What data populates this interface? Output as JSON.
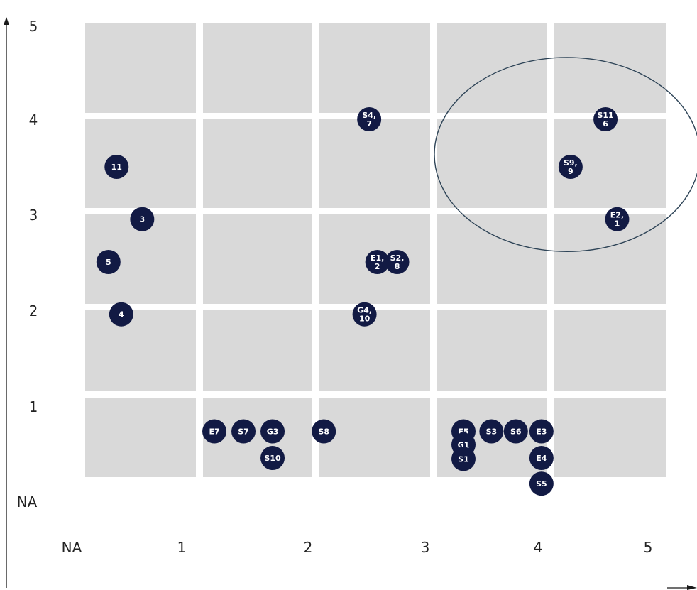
{
  "colors": {
    "cell_fill": "#d9d9d9",
    "point_fill": "#121a44",
    "point_text": "#ffffff",
    "ellipse_stroke": "#2e4457",
    "axis": "#1a1a1a",
    "tick_text": "#222222"
  },
  "chart_data": {
    "type": "scatter",
    "title": "",
    "xlabel": "",
    "ylabel": "",
    "x_ticks": [
      "NA",
      "1",
      "2",
      "3",
      "4",
      "5"
    ],
    "y_ticks": [
      "NA",
      "1",
      "2",
      "3",
      "4",
      "5"
    ],
    "xlim": [
      0,
      5
    ],
    "ylim": [
      0,
      5
    ],
    "grid": "5x5 gray cells separated by white gaps; x cells 1-5, y cells 0.5-5 (bottom row 0.5-1)",
    "points": [
      {
        "label": [
          "11"
        ],
        "x": 0.27,
        "y": 3.5
      },
      {
        "label": [
          "3"
        ],
        "x": 0.49,
        "y": 2.95
      },
      {
        "label": [
          "5"
        ],
        "x": 0.2,
        "y": 2.5
      },
      {
        "label": [
          "4"
        ],
        "x": 0.31,
        "y": 1.95
      },
      {
        "label": [
          "S4,",
          "7"
        ],
        "x": 2.44,
        "y": 4.0
      },
      {
        "label": [
          "E1,",
          "2"
        ],
        "x": 2.51,
        "y": 2.5
      },
      {
        "label": [
          "S2,",
          "8"
        ],
        "x": 2.68,
        "y": 2.5
      },
      {
        "label": [
          "G4,",
          "10"
        ],
        "x": 2.4,
        "y": 1.95
      },
      {
        "label": [
          "S11",
          "6"
        ],
        "x": 4.47,
        "y": 4.0
      },
      {
        "label": [
          "S9,",
          "9"
        ],
        "x": 4.17,
        "y": 3.5
      },
      {
        "label": [
          "E2,",
          "1"
        ],
        "x": 4.57,
        "y": 2.95
      },
      {
        "label": [
          "E7"
        ],
        "x": 1.11,
        "y": 0.72
      },
      {
        "label": [
          "S7"
        ],
        "x": 1.36,
        "y": 0.72
      },
      {
        "label": [
          "G3"
        ],
        "x": 1.61,
        "y": 0.72
      },
      {
        "label": [
          "S10"
        ],
        "x": 1.61,
        "y": 0.44
      },
      {
        "label": [
          "S8"
        ],
        "x": 2.05,
        "y": 0.72
      },
      {
        "label": [
          "E5"
        ],
        "x": 3.25,
        "y": 0.72
      },
      {
        "label": [
          "G1"
        ],
        "x": 3.25,
        "y": 0.58
      },
      {
        "label": [
          "S1"
        ],
        "x": 3.25,
        "y": 0.43
      },
      {
        "label": [
          "S3"
        ],
        "x": 3.49,
        "y": 0.72
      },
      {
        "label": [
          "S6"
        ],
        "x": 3.7,
        "y": 0.72
      },
      {
        "label": [
          "E3"
        ],
        "x": 3.92,
        "y": 0.72
      },
      {
        "label": [
          "E4"
        ],
        "x": 3.92,
        "y": 0.44
      },
      {
        "label": [
          "S5"
        ],
        "x": 3.92,
        "y": 0.17
      }
    ],
    "annotations": [
      {
        "type": "ellipse",
        "cx": 4.14,
        "cy": 3.63,
        "rx": 1.14,
        "ry": 1.02
      }
    ]
  }
}
